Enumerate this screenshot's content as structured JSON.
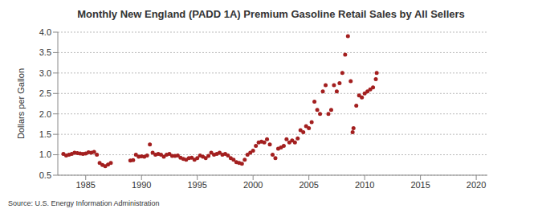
{
  "chart_data": {
    "type": "scatter",
    "title": "Monthly New England (PADD 1A) Premium Gasoline Retail Sales by All Sellers",
    "source": "Source: U.S. Energy Information Administration",
    "ylabel": "Dollars per Gallon",
    "x": [
      1983,
      1983.25,
      1983.5,
      1983.75,
      1984,
      1984.25,
      1984.5,
      1984.75,
      1985,
      1985.25,
      1985.5,
      1985.75,
      1986,
      1986.25,
      1986.5,
      1986.75,
      1987,
      1987.25,
      1989,
      1989.25,
      1989.5,
      1989.75,
      1990,
      1990.25,
      1990.5,
      1990.75,
      1991,
      1991.25,
      1991.5,
      1991.75,
      1992,
      1992.25,
      1992.5,
      1992.75,
      1993,
      1993.25,
      1993.5,
      1993.75,
      1994,
      1994.25,
      1994.5,
      1994.75,
      1995,
      1995.25,
      1995.5,
      1995.75,
      1996,
      1996.25,
      1996.5,
      1996.75,
      1997,
      1997.25,
      1997.5,
      1997.75,
      1998,
      1998.25,
      1998.5,
      1998.75,
      1999,
      1999.25,
      1999.5,
      1999.75,
      2000,
      2000.25,
      2000.5,
      2000.75,
      2001,
      2001.25,
      2001.5,
      2001.75,
      2002,
      2002.25,
      2002.5,
      2002.75,
      2003,
      2003.25,
      2003.5,
      2003.75,
      2004,
      2004.25,
      2004.5,
      2004.75,
      2005,
      2005.25,
      2005.5,
      2005.75,
      2006,
      2006.25,
      2006.5,
      2006.75,
      2007,
      2007.25,
      2007.5,
      2007.75,
      2008,
      2008.25,
      2008.5,
      2008.75,
      2008.92,
      2009,
      2009.25,
      2009.5,
      2009.75,
      2010,
      2010.25,
      2010.5,
      2010.75,
      2011,
      2011.08
    ],
    "values": [
      1.02,
      0.98,
      1.0,
      1.02,
      1.05,
      1.04,
      1.03,
      1.02,
      1.03,
      1.06,
      1.05,
      1.07,
      1.0,
      0.8,
      0.75,
      0.72,
      0.76,
      0.8,
      0.86,
      0.87,
      1.0,
      0.95,
      0.96,
      0.95,
      0.98,
      1.25,
      1.05,
      1.0,
      1.02,
      1.0,
      0.95,
      1.0,
      1.02,
      0.97,
      0.97,
      0.98,
      0.93,
      0.9,
      0.88,
      0.92,
      0.93,
      0.88,
      0.92,
      0.98,
      0.95,
      0.92,
      0.97,
      1.05,
      1.0,
      1.02,
      1.05,
      1.0,
      1.02,
      0.98,
      0.92,
      0.88,
      0.82,
      0.8,
      0.78,
      0.88,
      1.0,
      1.05,
      1.1,
      1.22,
      1.3,
      1.32,
      1.3,
      1.38,
      1.25,
      1.0,
      0.92,
      1.15,
      1.18,
      1.22,
      1.38,
      1.3,
      1.35,
      1.3,
      1.4,
      1.6,
      1.55,
      1.7,
      1.65,
      1.8,
      2.3,
      2.1,
      2.0,
      2.55,
      2.7,
      2.0,
      2.1,
      2.7,
      2.55,
      2.75,
      3.0,
      3.45,
      3.9,
      2.8,
      1.55,
      1.65,
      2.2,
      2.45,
      2.4,
      2.5,
      2.55,
      2.6,
      2.65,
      2.85,
      3.0
    ],
    "color": "#a31f1f",
    "marker": "circle",
    "xlim": [
      1982.5,
      2021
    ],
    "xticks": [
      1985,
      1990,
      1995,
      2000,
      2005,
      2010,
      2015,
      2020
    ],
    "ylim": [
      0.5,
      4.0
    ],
    "yticks": [
      0.5,
      {
        "value": 1.0,
        "label": "1.0"
      },
      1.5,
      {
        "value": 2.0,
        "label": "2.0"
      },
      2.5,
      {
        "value": 3.0,
        "label": "3.0"
      },
      3.5,
      {
        "value": 4.0,
        "label": "4.0"
      }
    ],
    "grid": true
  }
}
